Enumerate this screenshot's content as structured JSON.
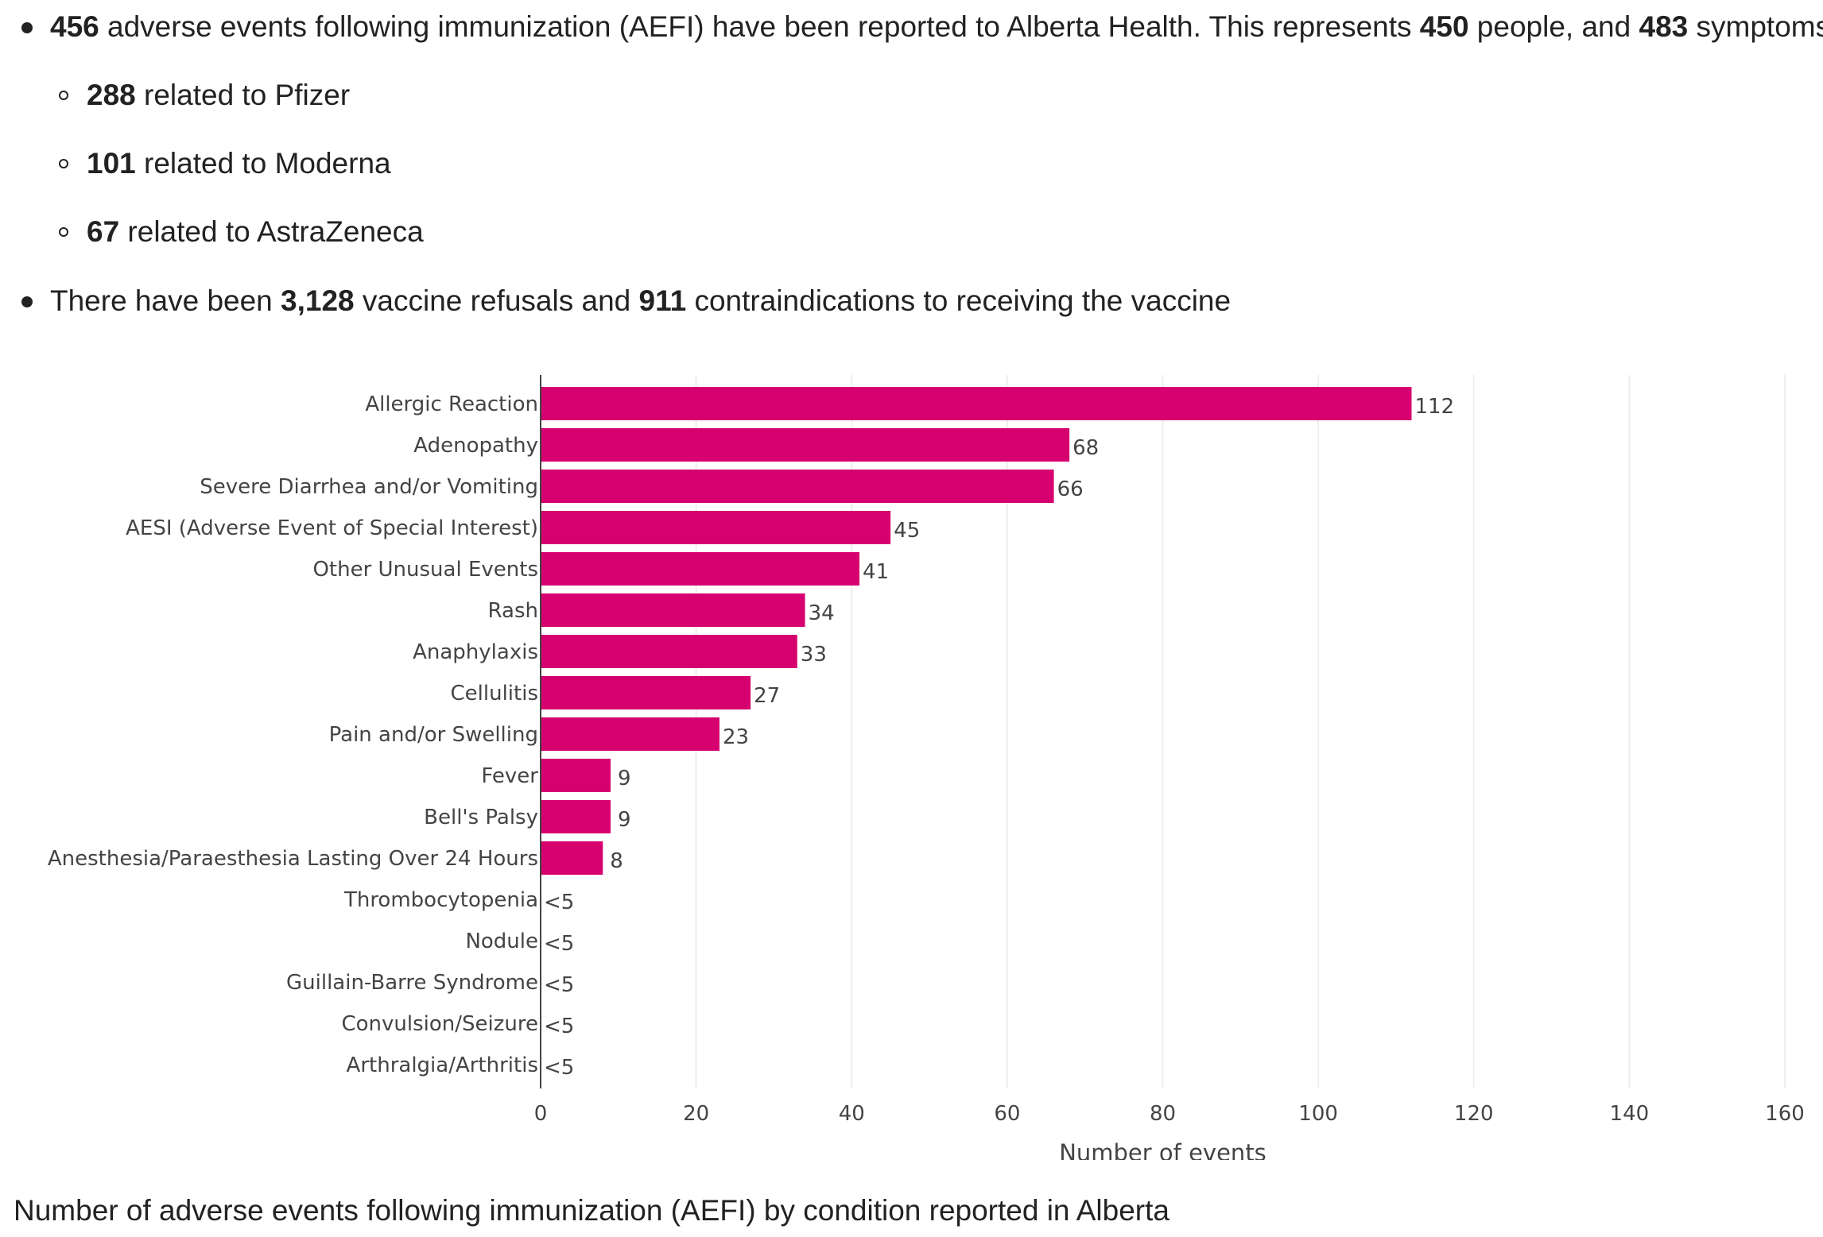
{
  "summary": {
    "line1": {
      "n1": "456",
      "t1": " adverse events following immunization (AEFI) have been reported to Alberta Health. This represents ",
      "n2": "450",
      "t2": " people, and ",
      "n3": "483",
      "t3": " symptoms."
    },
    "sub": [
      {
        "n": "288",
        "t": " related to Pfizer"
      },
      {
        "n": "101",
        "t": " related to Moderna"
      },
      {
        "n": "67",
        "t": " related to AstraZeneca"
      }
    ],
    "line2": {
      "t1": "There have been ",
      "n1": "3,128",
      "t2": " vaccine refusals and ",
      "n2": "911",
      "t3": " contraindications to receiving the vaccine"
    }
  },
  "chart_data": {
    "type": "bar",
    "orientation": "horizontal",
    "categories": [
      "Allergic Reaction",
      "Adenopathy",
      "Severe Diarrhea and/or Vomiting",
      "AESI (Adverse Event of Special Interest)",
      "Other Unusual Events",
      "Rash",
      "Anaphylaxis",
      "Cellulitis",
      "Pain and/or Swelling",
      "Fever",
      "Bell's Palsy",
      "Anesthesia/Paraesthesia Lasting Over 24 Hours",
      "Thrombocytopenia",
      "Nodule",
      "Guillain-Barre Syndrome",
      "Convulsion/Seizure",
      "Arthralgia/Arthritis"
    ],
    "values": [
      112,
      68,
      66,
      45,
      41,
      34,
      33,
      27,
      23,
      9,
      9,
      8,
      0,
      0,
      0,
      0,
      0
    ],
    "data_labels": [
      "112",
      "68",
      "66",
      "45",
      "41",
      "34",
      "33",
      "27",
      "23",
      "9",
      "9",
      "8",
      "<5",
      "<5",
      "<5",
      "<5",
      "<5"
    ],
    "xlabel": "Number of events",
    "ylabel": "",
    "xlim": [
      0,
      160
    ],
    "xticks": [
      0,
      20,
      40,
      60,
      80,
      100,
      120,
      140,
      160
    ],
    "grid": true,
    "bar_color": "#d6006f"
  },
  "caption": "Number of adverse events following immunization (AEFI) by condition reported in Alberta"
}
